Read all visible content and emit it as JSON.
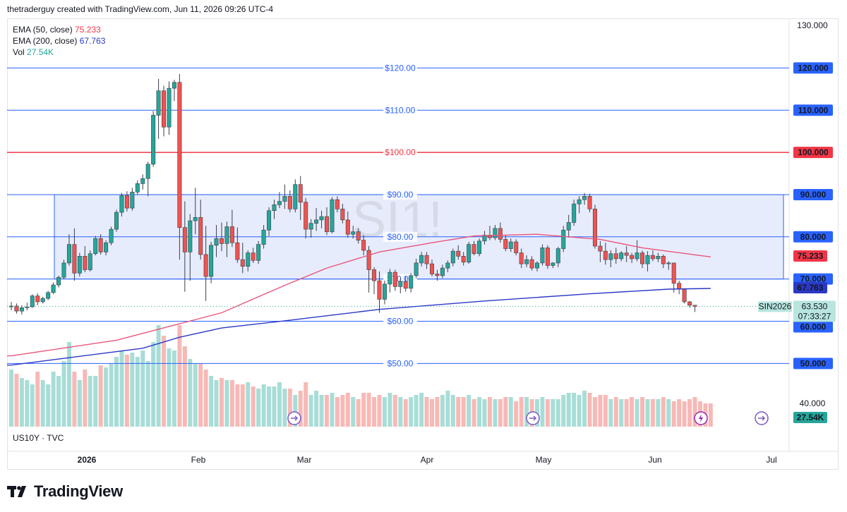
{
  "header": {
    "credit": "thetraderguy created with TradingView.com, Jun 11, 2026 09:26 UTC-4"
  },
  "legend": {
    "ema50_label": "EMA (50, close)",
    "ema50_value": "75.233",
    "ema200_label": "EMA (200, close)",
    "ema200_value": "67.763",
    "vol_label": "Vol",
    "vol_value": "27.54K"
  },
  "watermark": "SI1!",
  "symbol_info": "US10Y · TVC",
  "brand": {
    "name": "TradingView"
  },
  "colors": {
    "up": "#26a69a",
    "down": "#ef5350",
    "ema50": "#e8567a",
    "ema200": "#2b38c6",
    "level": "#2962ff",
    "red_level": "#f23645",
    "range_fill": "#dfe6fb",
    "vol_up": "#a8ddd7",
    "vol_down": "#f7b9b6"
  },
  "chart_data": {
    "type": "candlestick",
    "y_axis": {
      "min": 40,
      "max": 130,
      "tick_labels": [
        "130.000",
        "40.000"
      ]
    },
    "x_axis": {
      "labels": [
        "2026",
        "Feb",
        "Mar",
        "Apr",
        "May",
        "Jun",
        "Jul"
      ]
    },
    "levels": [
      {
        "value": 120,
        "label": "$120.00",
        "axis_label": "120.000",
        "color": "#2962ff"
      },
      {
        "value": 110,
        "label": "$110.00",
        "axis_label": "110.000",
        "color": "#2962ff"
      },
      {
        "value": 100,
        "label": "$100.00",
        "axis_label": "100.000",
        "color": "#f23645"
      },
      {
        "value": 90,
        "label": "$90.00",
        "axis_label": "90.000",
        "color": "#2962ff"
      },
      {
        "value": 80,
        "label": "$80.00",
        "axis_label": "80.000",
        "color": "#2962ff"
      },
      {
        "value": 70,
        "label": "$70.00",
        "axis_label": "70.000",
        "color": "#2962ff"
      },
      {
        "value": 60,
        "label": "$60.00",
        "axis_label": "60.000",
        "color": "#2962ff"
      },
      {
        "value": 50,
        "label": "$50.00",
        "axis_label": "50.000",
        "color": "#2962ff"
      }
    ],
    "range_box": {
      "top": 90,
      "bottom": 70
    },
    "badges": [
      {
        "label": "75.233",
        "value": 75.233,
        "color": "#f23645"
      },
      {
        "label": "67.763",
        "value": 67.763,
        "color": "#2b38c6"
      },
      {
        "label": "27.54K",
        "value": 27.54,
        "color": "#26a69a"
      }
    ],
    "last_price": {
      "symbol": "SIN2026",
      "price": "63.530",
      "countdown": "07:33:27",
      "value": 63.53
    },
    "candles": [
      [
        63.4,
        64.6,
        62.6,
        63.6
      ],
      [
        63.6,
        64.2,
        61.8,
        62.4
      ],
      [
        62.4,
        63.8,
        61.6,
        63.2
      ],
      [
        63.2,
        64.4,
        62.6,
        63.4
      ],
      [
        63.4,
        66.4,
        63.2,
        66.0
      ],
      [
        66.0,
        66.6,
        63.8,
        64.6
      ],
      [
        64.6,
        65.8,
        64.2,
        65.4
      ],
      [
        65.4,
        67.2,
        65.0,
        66.8
      ],
      [
        66.8,
        69.2,
        66.4,
        68.6
      ],
      [
        68.6,
        70.8,
        68.0,
        70.4
      ],
      [
        70.4,
        74.6,
        70.0,
        73.8
      ],
      [
        73.8,
        80.6,
        73.2,
        78.2
      ],
      [
        78.2,
        82.0,
        69.6,
        71.4
      ],
      [
        71.4,
        76.2,
        70.6,
        75.4
      ],
      [
        75.4,
        77.8,
        71.6,
        72.2
      ],
      [
        72.2,
        76.8,
        71.8,
        76.0
      ],
      [
        76.0,
        80.2,
        75.6,
        79.6
      ],
      [
        79.6,
        80.6,
        75.8,
        76.4
      ],
      [
        76.4,
        79.2,
        75.6,
        78.6
      ],
      [
        78.6,
        82.4,
        78.0,
        81.8
      ],
      [
        81.8,
        86.4,
        81.2,
        85.8
      ],
      [
        85.8,
        90.4,
        84.8,
        89.8
      ],
      [
        89.8,
        90.8,
        86.0,
        86.8
      ],
      [
        86.8,
        91.6,
        86.2,
        90.6
      ],
      [
        90.6,
        93.4,
        90.0,
        92.6
      ],
      [
        92.6,
        94.8,
        91.2,
        93.8
      ],
      [
        93.8,
        97.8,
        89.6,
        97.2
      ],
      [
        97.2,
        109.8,
        96.6,
        108.8
      ],
      [
        108.8,
        117.4,
        103.2,
        114.6
      ],
      [
        114.6,
        115.8,
        103.8,
        106.0
      ],
      [
        106.0,
        116.8,
        104.2,
        115.2
      ],
      [
        115.2,
        117.2,
        112.2,
        116.6
      ],
      [
        116.6,
        118.6,
        74.6,
        82.2
      ],
      [
        82.2,
        88.4,
        67.0,
        76.4
      ],
      [
        76.4,
        85.4,
        69.6,
        83.8
      ],
      [
        83.8,
        91.6,
        80.6,
        84.6
      ],
      [
        84.6,
        88.8,
        74.6,
        75.8
      ],
      [
        75.8,
        82.6,
        64.8,
        70.6
      ],
      [
        70.6,
        78.8,
        69.0,
        78.0
      ],
      [
        78.0,
        82.8,
        75.2,
        79.6
      ],
      [
        79.6,
        83.4,
        76.6,
        78.4
      ],
      [
        78.4,
        83.6,
        75.2,
        82.4
      ],
      [
        82.4,
        86.4,
        77.6,
        78.6
      ],
      [
        78.6,
        82.2,
        73.8,
        74.6
      ],
      [
        74.6,
        78.6,
        71.4,
        73.0
      ],
      [
        73.0,
        76.8,
        71.8,
        76.2
      ],
      [
        76.2,
        77.4,
        73.8,
        74.4
      ],
      [
        74.4,
        79.0,
        73.6,
        78.2
      ],
      [
        78.2,
        82.8,
        77.2,
        81.6
      ],
      [
        81.6,
        87.0,
        80.2,
        86.2
      ],
      [
        86.2,
        88.8,
        84.2,
        87.6
      ],
      [
        87.6,
        90.6,
        86.8,
        88.4
      ],
      [
        88.4,
        92.4,
        86.6,
        89.6
      ],
      [
        89.6,
        91.0,
        85.8,
        86.6
      ],
      [
        86.6,
        93.6,
        85.8,
        92.4
      ],
      [
        92.4,
        94.4,
        84.0,
        88.2
      ],
      [
        88.2,
        89.2,
        79.6,
        81.8
      ],
      [
        81.8,
        84.2,
        79.8,
        83.2
      ],
      [
        83.2,
        86.8,
        81.4,
        84.0
      ],
      [
        84.0,
        86.2,
        82.0,
        84.8
      ],
      [
        84.8,
        87.0,
        80.4,
        81.2
      ],
      [
        81.2,
        89.4,
        80.8,
        88.8
      ],
      [
        88.8,
        89.6,
        85.8,
        86.6
      ],
      [
        86.6,
        87.8,
        83.2,
        84.0
      ],
      [
        84.0,
        86.0,
        79.8,
        80.6
      ],
      [
        80.6,
        82.6,
        79.6,
        81.2
      ],
      [
        81.2,
        82.0,
        78.4,
        79.2
      ],
      [
        79.2,
        80.4,
        75.6,
        76.8
      ],
      [
        76.8,
        77.8,
        66.8,
        72.2
      ],
      [
        72.2,
        72.8,
        66.4,
        69.6
      ],
      [
        69.6,
        71.8,
        62.0,
        65.2
      ],
      [
        65.2,
        69.6,
        64.0,
        68.8
      ],
      [
        68.8,
        72.4,
        66.8,
        71.6
      ],
      [
        71.6,
        72.2,
        67.2,
        68.2
      ],
      [
        68.2,
        70.2,
        66.6,
        69.4
      ],
      [
        69.4,
        70.6,
        67.0,
        67.8
      ],
      [
        67.8,
        71.4,
        66.8,
        70.8
      ],
      [
        70.8,
        74.8,
        70.2,
        73.8
      ],
      [
        73.8,
        76.4,
        73.0,
        75.6
      ],
      [
        75.6,
        76.4,
        72.4,
        73.6
      ],
      [
        73.6,
        74.6,
        70.6,
        71.2
      ],
      [
        71.2,
        72.2,
        69.6,
        70.8
      ],
      [
        70.8,
        73.4,
        70.2,
        72.6
      ],
      [
        72.6,
        74.4,
        71.6,
        73.8
      ],
      [
        73.8,
        77.2,
        73.0,
        76.6
      ],
      [
        76.6,
        78.0,
        74.6,
        75.4
      ],
      [
        75.4,
        76.4,
        73.2,
        74.0
      ],
      [
        74.0,
        78.8,
        73.6,
        78.2
      ],
      [
        78.2,
        79.0,
        75.6,
        76.0
      ],
      [
        76.0,
        79.6,
        75.4,
        79.0
      ],
      [
        79.0,
        81.4,
        78.2,
        80.4
      ],
      [
        80.4,
        82.6,
        79.2,
        79.8
      ],
      [
        79.8,
        82.8,
        79.2,
        82.0
      ],
      [
        82.0,
        83.4,
        78.6,
        79.4
      ],
      [
        79.4,
        80.4,
        76.6,
        77.2
      ],
      [
        77.2,
        79.6,
        76.4,
        78.8
      ],
      [
        78.8,
        79.4,
        75.6,
        76.2
      ],
      [
        76.2,
        77.2,
        72.6,
        73.6
      ],
      [
        73.6,
        75.6,
        72.8,
        74.6
      ],
      [
        74.6,
        75.4,
        72.0,
        72.6
      ],
      [
        72.6,
        74.2,
        71.8,
        73.8
      ],
      [
        73.8,
        78.2,
        73.2,
        77.4
      ],
      [
        77.4,
        78.0,
        72.4,
        73.2
      ],
      [
        73.2,
        74.0,
        72.6,
        73.8
      ],
      [
        73.8,
        77.6,
        72.8,
        77.2
      ],
      [
        77.2,
        82.6,
        76.4,
        81.6
      ],
      [
        81.6,
        85.2,
        79.8,
        83.4
      ],
      [
        83.4,
        88.8,
        82.6,
        87.8
      ],
      [
        87.8,
        89.6,
        85.6,
        88.8
      ],
      [
        88.8,
        90.4,
        87.6,
        89.6
      ],
      [
        89.6,
        90.2,
        85.8,
        86.6
      ],
      [
        86.6,
        87.6,
        77.2,
        77.8
      ],
      [
        77.8,
        79.0,
        74.0,
        76.6
      ],
      [
        76.6,
        78.6,
        73.4,
        74.6
      ],
      [
        74.6,
        76.8,
        72.8,
        76.0
      ],
      [
        76.0,
        77.4,
        73.6,
        74.8
      ],
      [
        74.8,
        76.6,
        74.2,
        76.2
      ],
      [
        76.2,
        77.8,
        74.0,
        75.6
      ],
      [
        75.6,
        76.2,
        73.8,
        74.8
      ],
      [
        74.8,
        79.2,
        74.2,
        76.2
      ],
      [
        76.2,
        76.8,
        72.6,
        73.6
      ],
      [
        73.6,
        76.6,
        71.8,
        75.6
      ],
      [
        75.6,
        76.8,
        74.2,
        74.8
      ],
      [
        74.8,
        76.2,
        74.0,
        75.4
      ],
      [
        75.4,
        75.8,
        72.6,
        73.6
      ],
      [
        73.6,
        74.2,
        72.2,
        73.8
      ],
      [
        73.8,
        73.8,
        66.8,
        69.0
      ],
      [
        69.0,
        69.6,
        66.4,
        67.6
      ],
      [
        67.6,
        67.8,
        64.2,
        64.6
      ],
      [
        64.6,
        64.8,
        63.2,
        63.8
      ],
      [
        63.8,
        63.8,
        62.2,
        63.5
      ]
    ],
    "ema50": [
      [
        0,
        51.8
      ],
      [
        20,
        55.5
      ],
      [
        40,
        62.0
      ],
      [
        52,
        68.5
      ],
      [
        60,
        72.6
      ],
      [
        70,
        76.4
      ],
      [
        80,
        78.6
      ],
      [
        88,
        80.2
      ],
      [
        100,
        80.6
      ],
      [
        112,
        79.4
      ],
      [
        120,
        77.4
      ],
      [
        133,
        75.233
      ]
    ],
    "ema200": [
      [
        0,
        49.6
      ],
      [
        25,
        53.6
      ],
      [
        32,
        56.2
      ],
      [
        40,
        58.4
      ],
      [
        52,
        60.1
      ],
      [
        70,
        62.8
      ],
      [
        90,
        64.8
      ],
      [
        110,
        66.5
      ],
      [
        125,
        67.6
      ],
      [
        133,
        67.763
      ]
    ],
    "volume": [
      27,
      25,
      23,
      22,
      20,
      26,
      22,
      20,
      26,
      24,
      31,
      40,
      26,
      22,
      27,
      24,
      24,
      29,
      28,
      30,
      33,
      36,
      34,
      35,
      33,
      36,
      31,
      40,
      48,
      43,
      37,
      36,
      48,
      38,
      32,
      30,
      30,
      27,
      24,
      22,
      23,
      22,
      22,
      20,
      20,
      21,
      19,
      18,
      20,
      19,
      19,
      21,
      18,
      18,
      15,
      17,
      21,
      15,
      17,
      15,
      15,
      16,
      14,
      15,
      16,
      14,
      13,
      16,
      16,
      14,
      15,
      14,
      16,
      15,
      14,
      13,
      14,
      15,
      16,
      14,
      13,
      14,
      15,
      17,
      15,
      14,
      14,
      15,
      13,
      14,
      13,
      14,
      13,
      13,
      14,
      14,
      12,
      14,
      14,
      13,
      13,
      14,
      13,
      13,
      13,
      15,
      16,
      16,
      15,
      17,
      16,
      14,
      15,
      15,
      13,
      14,
      13,
      13,
      14,
      13,
      14,
      13,
      13,
      13,
      14,
      13,
      12,
      13,
      12,
      13,
      14,
      12,
      11,
      11
    ]
  }
}
